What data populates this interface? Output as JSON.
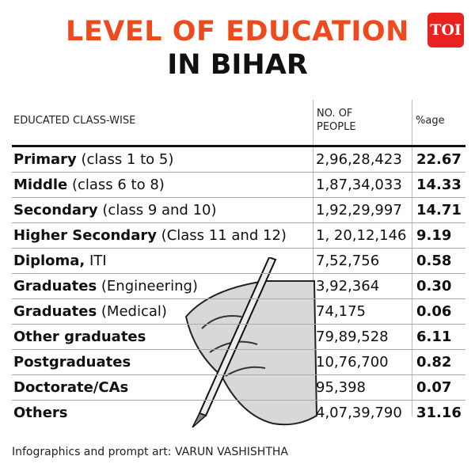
{
  "title": {
    "line1": "LEVEL OF EDUCATION",
    "line2": "IN BIHAR"
  },
  "logo": "TOI",
  "colors": {
    "title": "#ee4a1e",
    "logo_bg": "#e8231f"
  },
  "table": {
    "headers": {
      "category": "EDUCATED CLASS-WISE",
      "people_line1": "NO. OF",
      "people_line2": "PEOPLE",
      "pct": "%age"
    },
    "rows": [
      {
        "bold": "Primary",
        "rest": " (class 1 to 5)",
        "people": "2,96,28,423",
        "pct": "22.67"
      },
      {
        "bold": "Middle",
        "rest": " (class 6 to 8)",
        "people": "1,87,34,033",
        "pct": "14.33"
      },
      {
        "bold": "Secondary",
        "rest": " (class 9 and 10)",
        "people": "1,92,29,997",
        "pct": "14.71"
      },
      {
        "bold": "Higher Secondary",
        "rest": " (Class 11 and 12)",
        "people": "1, 20,12,146",
        "pct": "9.19"
      },
      {
        "bold": "Diploma,",
        "rest": " ITI",
        "people": "7,52,756",
        "pct": "0.58"
      },
      {
        "bold": "Graduates",
        "rest": " (Engineering)",
        "people": "3,92,364",
        "pct": "0.30"
      },
      {
        "bold": "Graduates",
        "rest": " (Medical)",
        "people": "74,175",
        "pct": "0.06"
      },
      {
        "bold": "Other graduates",
        "rest": "",
        "people": "79,89,528",
        "pct": "6.11"
      },
      {
        "bold": "Postgraduates",
        "rest": "",
        "people": "10,76,700",
        "pct": "0.82"
      },
      {
        "bold": "Doctorate/CAs",
        "rest": "",
        "people": "95,398",
        "pct": "0.07"
      },
      {
        "bold": "Others",
        "rest": "",
        "people": "4,07,39,790",
        "pct": "31.16"
      }
    ]
  },
  "credit": "Infographics and prompt art: VARUN VASHISHTHA",
  "illustration": "hand-holding-pen"
}
